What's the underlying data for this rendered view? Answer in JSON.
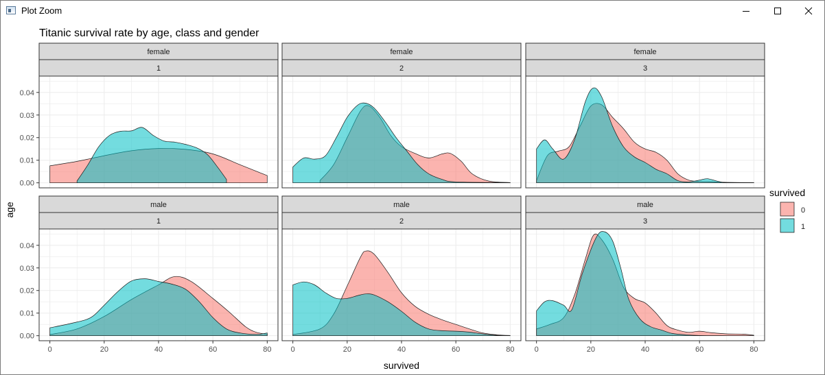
{
  "window": {
    "title": "Plot Zoom",
    "icon": "plot-window-icon",
    "controls": [
      "minimize-icon",
      "maximize-icon",
      "close-icon"
    ]
  },
  "colors": {
    "survived_0": "#F8766D",
    "survived_1": "#00BFC4",
    "strip_fill": "#D9D9D9",
    "grid": "#EBEBEB"
  },
  "chart_data": {
    "type": "area",
    "subtype": "density",
    "title": "Titanic survival rate by age, class and gender",
    "xlabel": "survived",
    "ylabel": "age",
    "xlim": [
      0,
      80
    ],
    "ylim": [
      0,
      0.045
    ],
    "x_ticks": [
      "0",
      "20",
      "40",
      "60",
      "80"
    ],
    "y_ticks": [
      "0.00",
      "0.01",
      "0.02",
      "0.03",
      "0.04"
    ],
    "grid": true,
    "legend": {
      "title": "survived",
      "position": "right",
      "entries": [
        "0",
        "1"
      ]
    },
    "panels": [
      {
        "sex": "female",
        "pclass": "1",
        "series": [
          {
            "survived": "0",
            "points": [
              [
                0,
                0.0075
              ],
              [
                10,
                0.0095
              ],
              [
                20,
                0.012
              ],
              [
                30,
                0.0142
              ],
              [
                40,
                0.0152
              ],
              [
                50,
                0.0148
              ],
              [
                60,
                0.0128
              ],
              [
                70,
                0.008
              ],
              [
                80,
                0.0032
              ]
            ]
          },
          {
            "survived": "1",
            "points": [
              [
                10,
                0.0008
              ],
              [
                14,
                0.008
              ],
              [
                18,
                0.016
              ],
              [
                22,
                0.021
              ],
              [
                26,
                0.0228
              ],
              [
                30,
                0.023
              ],
              [
                34,
                0.0245
              ],
              [
                38,
                0.021
              ],
              [
                42,
                0.0185
              ],
              [
                46,
                0.018
              ],
              [
                50,
                0.017
              ],
              [
                54,
                0.0155
              ],
              [
                58,
                0.0125
              ],
              [
                62,
                0.0065
              ],
              [
                65,
                0.0015
              ]
            ]
          }
        ]
      },
      {
        "sex": "female",
        "pclass": "2",
        "series": [
          {
            "survived": "0",
            "points": [
              [
                10,
                0.001
              ],
              [
                15,
                0.008
              ],
              [
                20,
                0.02
              ],
              [
                25,
                0.032
              ],
              [
                28,
                0.034
              ],
              [
                32,
                0.029
              ],
              [
                36,
                0.021
              ],
              [
                40,
                0.016
              ],
              [
                45,
                0.013
              ],
              [
                50,
                0.011
              ],
              [
                55,
                0.0128
              ],
              [
                58,
                0.013
              ],
              [
                62,
                0.0095
              ],
              [
                66,
                0.004
              ],
              [
                72,
                0.0008
              ],
              [
                80,
                0.0001
              ]
            ]
          },
          {
            "survived": "1",
            "points": [
              [
                0,
                0.007
              ],
              [
                4,
                0.011
              ],
              [
                8,
                0.0105
              ],
              [
                12,
                0.012
              ],
              [
                16,
                0.02
              ],
              [
                20,
                0.029
              ],
              [
                24,
                0.0345
              ],
              [
                27,
                0.0352
              ],
              [
                30,
                0.033
              ],
              [
                34,
                0.027
              ],
              [
                38,
                0.02
              ],
              [
                42,
                0.014
              ],
              [
                46,
                0.008
              ],
              [
                50,
                0.004
              ],
              [
                55,
                0.0015
              ],
              [
                60,
                0.0004
              ],
              [
                80,
                0.0001
              ]
            ]
          }
        ]
      },
      {
        "sex": "female",
        "pclass": "3",
        "series": [
          {
            "survived": "0",
            "points": [
              [
                0,
                0.001
              ],
              [
                4,
                0.012
              ],
              [
                8,
                0.014
              ],
              [
                12,
                0.016
              ],
              [
                16,
                0.025
              ],
              [
                20,
                0.034
              ],
              [
                24,
                0.0345
              ],
              [
                28,
                0.029
              ],
              [
                32,
                0.024
              ],
              [
                36,
                0.018
              ],
              [
                40,
                0.015
              ],
              [
                44,
                0.0135
              ],
              [
                48,
                0.01
              ],
              [
                52,
                0.004
              ],
              [
                56,
                0.0012
              ],
              [
                60,
                0.0006
              ],
              [
                64,
                0.0005
              ],
              [
                70,
                0.0002
              ],
              [
                80,
                0.0001
              ]
            ]
          },
          {
            "survived": "1",
            "points": [
              [
                0,
                0.015
              ],
              [
                3,
                0.019
              ],
              [
                6,
                0.015
              ],
              [
                10,
                0.0105
              ],
              [
                14,
                0.019
              ],
              [
                18,
                0.036
              ],
              [
                21,
                0.042
              ],
              [
                24,
                0.038
              ],
              [
                28,
                0.025
              ],
              [
                32,
                0.016
              ],
              [
                36,
                0.0115
              ],
              [
                40,
                0.009
              ],
              [
                44,
                0.006
              ],
              [
                48,
                0.004
              ],
              [
                52,
                0.001
              ],
              [
                56,
                0.0004
              ],
              [
                60,
                0.0012
              ],
              [
                63,
                0.0018
              ],
              [
                67,
                0.0006
              ],
              [
                70,
                0.0001
              ],
              [
                80,
                0
              ]
            ]
          }
        ]
      },
      {
        "sex": "male",
        "pclass": "1",
        "series": [
          {
            "survived": "0",
            "points": [
              [
                0,
                0.0005
              ],
              [
                10,
                0.003
              ],
              [
                20,
                0.0085
              ],
              [
                30,
                0.016
              ],
              [
                40,
                0.0225
              ],
              [
                46,
                0.0262
              ],
              [
                52,
                0.024
              ],
              [
                60,
                0.0165
              ],
              [
                66,
                0.0105
              ],
              [
                72,
                0.004
              ],
              [
                76,
                0.0015
              ],
              [
                80,
                0.0007
              ]
            ]
          },
          {
            "survived": "1",
            "points": [
              [
                0,
                0.0035
              ],
              [
                8,
                0.0055
              ],
              [
                15,
                0.008
              ],
              [
                20,
                0.0135
              ],
              [
                25,
                0.0195
              ],
              [
                30,
                0.0242
              ],
              [
                35,
                0.0252
              ],
              [
                40,
                0.024
              ],
              [
                45,
                0.0228
              ],
              [
                50,
                0.0205
              ],
              [
                55,
                0.015
              ],
              [
                60,
                0.008
              ],
              [
                65,
                0.003
              ],
              [
                70,
                0.0012
              ],
              [
                76,
                0.0006
              ],
              [
                80,
                0.0012
              ]
            ]
          }
        ]
      },
      {
        "sex": "male",
        "pclass": "2",
        "series": [
          {
            "survived": "0",
            "points": [
              [
                0,
                0.0005
              ],
              [
                10,
                0.003
              ],
              [
                15,
                0.0095
              ],
              [
                20,
                0.022
              ],
              [
                25,
                0.035
              ],
              [
                27,
                0.0375
              ],
              [
                30,
                0.036
              ],
              [
                35,
                0.028
              ],
              [
                40,
                0.019
              ],
              [
                45,
                0.013
              ],
              [
                50,
                0.0095
              ],
              [
                55,
                0.007
              ],
              [
                60,
                0.005
              ],
              [
                65,
                0.003
              ],
              [
                70,
                0.0012
              ],
              [
                75,
                0.0004
              ],
              [
                80,
                0.0001
              ]
            ]
          },
          {
            "survived": "1",
            "points": [
              [
                0,
                0.0225
              ],
              [
                4,
                0.0238
              ],
              [
                8,
                0.0225
              ],
              [
                12,
                0.019
              ],
              [
                16,
                0.0165
              ],
              [
                20,
                0.0165
              ],
              [
                24,
                0.0178
              ],
              [
                27,
                0.0185
              ],
              [
                30,
                0.018
              ],
              [
                35,
                0.015
              ],
              [
                40,
                0.0108
              ],
              [
                45,
                0.006
              ],
              [
                50,
                0.003
              ],
              [
                55,
                0.0022
              ],
              [
                60,
                0.002
              ],
              [
                65,
                0.0016
              ],
              [
                70,
                0.0008
              ],
              [
                75,
                0.0002
              ],
              [
                80,
                0
              ]
            ]
          }
        ]
      },
      {
        "sex": "male",
        "pclass": "3",
        "series": [
          {
            "survived": "0",
            "points": [
              [
                0,
                0.003
              ],
              [
                5,
                0.005
              ],
              [
                10,
                0.008
              ],
              [
                14,
                0.018
              ],
              [
                18,
                0.034
              ],
              [
                21,
                0.0445
              ],
              [
                24,
                0.0425
              ],
              [
                28,
                0.034
              ],
              [
                32,
                0.0215
              ],
              [
                36,
                0.0165
              ],
              [
                40,
                0.0145
              ],
              [
                44,
                0.01
              ],
              [
                48,
                0.0045
              ],
              [
                52,
                0.0025
              ],
              [
                56,
                0.0015
              ],
              [
                60,
                0.002
              ],
              [
                64,
                0.0014
              ],
              [
                70,
                0.0008
              ],
              [
                76,
                0.0007
              ],
              [
                80,
                0.0002
              ]
            ]
          },
          {
            "survived": "1",
            "points": [
              [
                0,
                0.011
              ],
              [
                3,
                0.015
              ],
              [
                6,
                0.0155
              ],
              [
                10,
                0.0135
              ],
              [
                13,
                0.0115
              ],
              [
                17,
                0.028
              ],
              [
                22,
                0.0435
              ],
              [
                25,
                0.046
              ],
              [
                28,
                0.042
              ],
              [
                31,
                0.03
              ],
              [
                34,
                0.016
              ],
              [
                38,
                0.0075
              ],
              [
                42,
                0.004
              ],
              [
                46,
                0.0025
              ],
              [
                50,
                0.001
              ],
              [
                55,
                0.0004
              ],
              [
                60,
                0.0001
              ],
              [
                70,
                0
              ],
              [
                80,
                0
              ]
            ]
          }
        ]
      }
    ]
  }
}
